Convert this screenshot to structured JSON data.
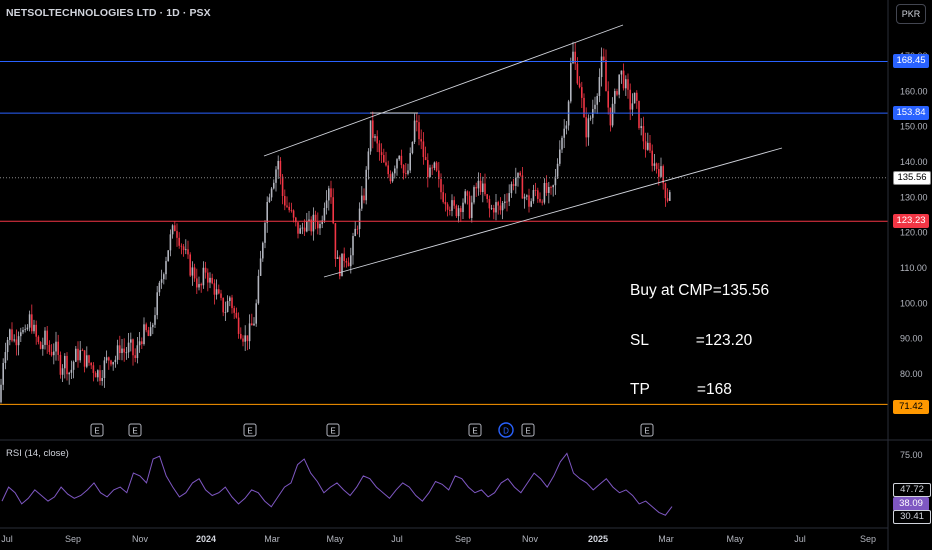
{
  "title": "NETSOLTECHNOLOGIES LTD · 1D · PSX",
  "currency": "PKR",
  "note": {
    "line1": "Buy at CMP=135.56",
    "line2": "SL           =123.20",
    "line3": "TP           =168"
  },
  "rsi_title": "RSI (14, close)",
  "price_labels": {
    "r1": "168.45",
    "r2": "153.84",
    "last": "135.56",
    "s1": "123.23",
    "s2": "71.42"
  },
  "rsi_labels": {
    "a": "47.72",
    "b": "38.09",
    "c": "30.41"
  },
  "event_markers": [
    "E",
    "E",
    "E",
    "E",
    "E",
    "D",
    "E",
    "E"
  ],
  "colors": {
    "up": "#b2b5be",
    "down": "#f23645",
    "blue": "#2962ff",
    "red": "#f23645",
    "orange": "#ff9800",
    "rsi": "#7e57c2"
  },
  "chart_data": [
    {
      "type": "candlestick",
      "title": "NETSOLTECHNOLOGIES LTD · 1D · PSX",
      "y_ticks": [
        80,
        90,
        100,
        110,
        120,
        130,
        140,
        150,
        160,
        170
      ],
      "ylim": [
        68,
        180
      ],
      "x_ticks": [
        "Jul",
        "Sep",
        "Nov",
        "2024",
        "Mar",
        "May",
        "Jul",
        "Sep",
        "Nov",
        "2025",
        "Mar",
        "May",
        "Jul",
        "Sep"
      ],
      "horizontal_levels": [
        {
          "value": 168.45,
          "color": "blue"
        },
        {
          "value": 153.84,
          "color": "blue"
        },
        {
          "value": 135.56,
          "color": "dotted"
        },
        {
          "value": 123.23,
          "color": "red"
        },
        {
          "value": 71.42,
          "color": "orange"
        }
      ],
      "close_path": [
        [
          0,
          72
        ],
        [
          2,
          82
        ],
        [
          5,
          88
        ],
        [
          10,
          92
        ],
        [
          15,
          89
        ],
        [
          20,
          94
        ],
        [
          25,
          90
        ],
        [
          30,
          96
        ],
        [
          35,
          91
        ],
        [
          40,
          87
        ],
        [
          45,
          90
        ],
        [
          50,
          86
        ],
        [
          55,
          88
        ],
        [
          60,
          82
        ],
        [
          65,
          84
        ],
        [
          70,
          80
        ],
        [
          75,
          85
        ],
        [
          80,
          86
        ],
        [
          85,
          84
        ],
        [
          90,
          83
        ],
        [
          95,
          81
        ],
        [
          100,
          80
        ],
        [
          105,
          83
        ],
        [
          110,
          85
        ],
        [
          115,
          84
        ],
        [
          120,
          88
        ],
        [
          125,
          86
        ],
        [
          130,
          88
        ],
        [
          135,
          84
        ],
        [
          140,
          90
        ],
        [
          145,
          92
        ],
        [
          150,
          90
        ],
        [
          155,
          98
        ],
        [
          160,
          105
        ],
        [
          165,
          112
        ],
        [
          170,
          118
        ],
        [
          175,
          122
        ],
        [
          180,
          118
        ],
        [
          185,
          114
        ],
        [
          190,
          110
        ],
        [
          195,
          108
        ],
        [
          200,
          103
        ],
        [
          205,
          110
        ],
        [
          210,
          106
        ],
        [
          215,
          104
        ],
        [
          220,
          100
        ],
        [
          225,
          98
        ],
        [
          230,
          102
        ],
        [
          235,
          96
        ],
        [
          240,
          93
        ],
        [
          245,
          90
        ],
        [
          250,
          92
        ],
        [
          255,
          96
        ],
        [
          260,
          110
        ],
        [
          265,
          125
        ],
        [
          270,
          133
        ],
        [
          275,
          137
        ],
        [
          278,
          141
        ],
        [
          282,
          131
        ],
        [
          286,
          128
        ],
        [
          290,
          126
        ],
        [
          295,
          122
        ],
        [
          300,
          120
        ],
        [
          305,
          123
        ],
        [
          310,
          121
        ],
        [
          315,
          124
        ],
        [
          320,
          122
        ],
        [
          325,
          130
        ],
        [
          330,
          135
        ],
        [
          333,
          124
        ],
        [
          336,
          112
        ],
        [
          340,
          110
        ],
        [
          345,
          114
        ],
        [
          350,
          112
        ],
        [
          355,
          120
        ],
        [
          360,
          126
        ],
        [
          365,
          132
        ],
        [
          370,
          150
        ],
        [
          375,
          146
        ],
        [
          380,
          142
        ],
        [
          385,
          138
        ],
        [
          390,
          136
        ],
        [
          395,
          140
        ],
        [
          400,
          144
        ],
        [
          405,
          134
        ],
        [
          410,
          140
        ],
        [
          415,
          152
        ],
        [
          420,
          146
        ],
        [
          425,
          140
        ],
        [
          430,
          136
        ],
        [
          435,
          138
        ],
        [
          440,
          132
        ],
        [
          445,
          130
        ],
        [
          450,
          128
        ],
        [
          455,
          126
        ],
        [
          460,
          128
        ],
        [
          465,
          130
        ],
        [
          470,
          126
        ],
        [
          475,
          132
        ],
        [
          480,
          134
        ],
        [
          485,
          130
        ],
        [
          490,
          126
        ],
        [
          495,
          128
        ],
        [
          500,
          126
        ],
        [
          505,
          130
        ],
        [
          510,
          132
        ],
        [
          515,
          136
        ],
        [
          520,
          134
        ],
        [
          525,
          130
        ],
        [
          530,
          128
        ],
        [
          535,
          132
        ],
        [
          540,
          130
        ],
        [
          545,
          132
        ],
        [
          550,
          130
        ],
        [
          555,
          134
        ],
        [
          560,
          146
        ],
        [
          565,
          150
        ],
        [
          568,
          156
        ],
        [
          572,
          172
        ],
        [
          576,
          166
        ],
        [
          580,
          162
        ],
        [
          585,
          148
        ],
        [
          590,
          152
        ],
        [
          595,
          158
        ],
        [
          600,
          165
        ],
        [
          603,
          170
        ],
        [
          606,
          160
        ],
        [
          610,
          152
        ],
        [
          615,
          158
        ],
        [
          620,
          166
        ],
        [
          625,
          162
        ],
        [
          630,
          156
        ],
        [
          635,
          158
        ],
        [
          640,
          150
        ],
        [
          645,
          145
        ],
        [
          650,
          142
        ],
        [
          655,
          139
        ],
        [
          660,
          138
        ],
        [
          665,
          132
        ],
        [
          668,
          130
        ],
        [
          672,
          135.56
        ]
      ]
    },
    {
      "type": "line",
      "title": "RSI (14, close)",
      "y_ticks": [
        30.41,
        38.09,
        47.72,
        75.0
      ],
      "ylim": [
        25,
        82
      ],
      "values": [
        42,
        52,
        48,
        40,
        44,
        50,
        46,
        42,
        45,
        52,
        47,
        44,
        46,
        50,
        55,
        48,
        45,
        50,
        52,
        48,
        62,
        60,
        55,
        72,
        74,
        60,
        52,
        45,
        48,
        55,
        58,
        50,
        46,
        48,
        52,
        45,
        40,
        44,
        50,
        48,
        42,
        38,
        45,
        52,
        55,
        68,
        72,
        62,
        56,
        48,
        52,
        55,
        50,
        46,
        52,
        60,
        58,
        52,
        48,
        44,
        50,
        55,
        52,
        46,
        42,
        48,
        56,
        54,
        50,
        60,
        58,
        52,
        48,
        50,
        45,
        48,
        55,
        58,
        52,
        48,
        55,
        62,
        58,
        52,
        60,
        70,
        76,
        62,
        58,
        55,
        50,
        54,
        58,
        52,
        48,
        50,
        46,
        40,
        42,
        38,
        34,
        32,
        38.09
      ]
    }
  ]
}
